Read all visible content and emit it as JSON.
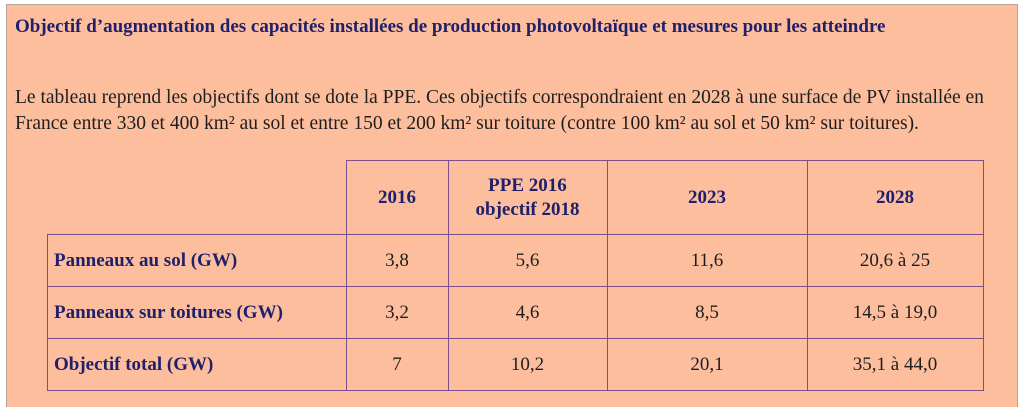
{
  "header": {
    "title": "Objectif d’augmentation des capacités installées de production photovoltaïque et mesures pour les atteindre"
  },
  "paragraph": "Le tableau reprend les objectifs dont se dote la PPE. Ces objectifs correspondraient en 2028 à une surface de PV installée en France entre 330 et 400 km² au sol et entre 150 et 200 km² sur toiture (contre 100 km² au sol et 50 km² sur toitures).",
  "table": {
    "header": [
      [
        "2016"
      ],
      [
        "PPE 2016",
        "objectif 2018"
      ],
      [
        "2023"
      ],
      [
        "2028"
      ]
    ],
    "rows": [
      [
        "Panneaux au sol (GW)",
        "3,8",
        "5,6",
        "11,6",
        "20,6 à 25"
      ],
      [
        "Panneaux sur toitures (GW)",
        "3,2",
        "4,6",
        "8,5",
        "14,5 à 19,0"
      ],
      [
        "Objectif total (GW)",
        "7",
        "10,2",
        "20,1",
        "35,1 à 44,0"
      ]
    ]
  }
}
